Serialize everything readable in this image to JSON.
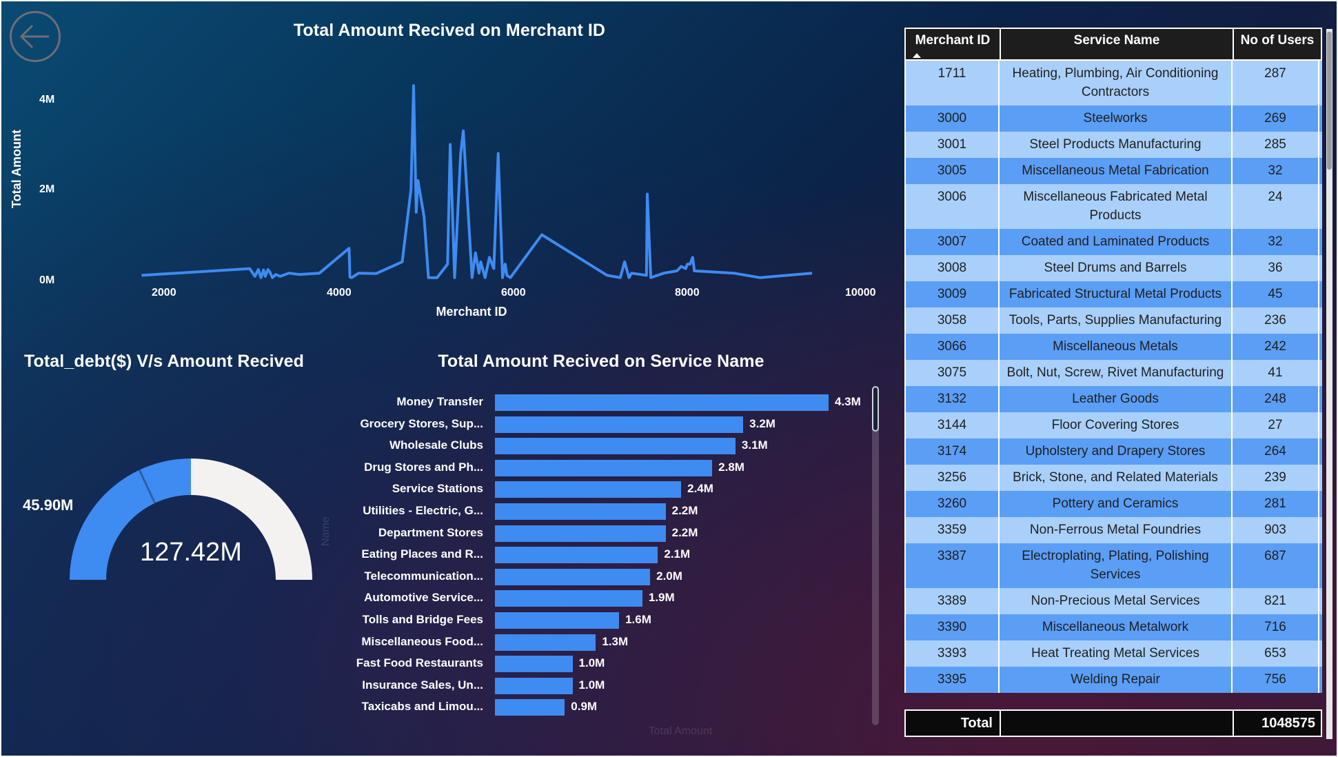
{
  "back_button": {
    "icon": "arrow-left-icon"
  },
  "line_chart": {
    "title": "Total Amount Recived on Merchant ID",
    "xlabel": "Merchant ID",
    "ylabel": "Total Amount",
    "y_ticks": [
      "4M",
      "2M",
      "0M"
    ],
    "x_ticks": [
      "2000",
      "4000",
      "6000",
      "8000",
      "10000"
    ]
  },
  "gauge": {
    "title": "Total_debt($) V/s Amount Recived",
    "value_label": "45.90M",
    "center_label": "127.42M"
  },
  "bar_chart": {
    "title": "Total Amount Recived on Service Name",
    "y_axis_faint": "Name",
    "x_axis_faint": "Total Amount"
  },
  "table": {
    "headers": [
      "Merchant ID",
      "Service Name",
      "No of Users"
    ],
    "rows": [
      [
        "1711",
        "Heating, Plumbing, Air Conditioning Contractors",
        "287"
      ],
      [
        "3000",
        "Steelworks",
        "269"
      ],
      [
        "3001",
        "Steel Products Manufacturing",
        "285"
      ],
      [
        "3005",
        "Miscellaneous Metal Fabrication",
        "32"
      ],
      [
        "3006",
        "Miscellaneous Fabricated Metal Products",
        "24"
      ],
      [
        "3007",
        "Coated and Laminated Products",
        "32"
      ],
      [
        "3008",
        "Steel Drums and Barrels",
        "36"
      ],
      [
        "3009",
        "Fabricated Structural Metal Products",
        "45"
      ],
      [
        "3058",
        "Tools, Parts, Supplies Manufacturing",
        "236"
      ],
      [
        "3066",
        "Miscellaneous Metals",
        "242"
      ],
      [
        "3075",
        "Bolt, Nut, Screw, Rivet Manufacturing",
        "41"
      ],
      [
        "3132",
        "Leather Goods",
        "248"
      ],
      [
        "3144",
        "Floor Covering Stores",
        "27"
      ],
      [
        "3174",
        "Upholstery and Drapery Stores",
        "264"
      ],
      [
        "3256",
        "Brick, Stone, and Related Materials",
        "239"
      ],
      [
        "3260",
        "Pottery and Ceramics",
        "281"
      ],
      [
        "3359",
        "Non-Ferrous Metal Foundries",
        "903"
      ],
      [
        "3387",
        "Electroplating, Plating, Polishing Services",
        "687"
      ],
      [
        "3389",
        "Non-Precious Metal Services",
        "821"
      ],
      [
        "3390",
        "Miscellaneous Metalwork",
        "716"
      ],
      [
        "3393",
        "Heat Treating Metal Services",
        "653"
      ],
      [
        "3395",
        "Welding Repair",
        "756"
      ]
    ],
    "total_label": "Total",
    "total_value": "1048575"
  },
  "colors": {
    "series": "#3e8bf2",
    "gauge_rest": "#f3f2f1",
    "table_light": "#a9d0fb",
    "table_dark": "#5b9ef6"
  },
  "chart_data": [
    {
      "type": "line",
      "title": "Total Amount Recived on Merchant ID",
      "xlabel": "Merchant ID",
      "ylabel": "Total Amount",
      "xlim": [
        1500,
        10000
      ],
      "ylim": [
        0,
        4500000
      ],
      "x": [
        1711,
        2950,
        3010,
        3050,
        3080,
        3110,
        3130,
        3160,
        3180,
        3210,
        3250,
        3300,
        3400,
        3520,
        3750,
        4090,
        4100,
        4120,
        4200,
        4400,
        4700,
        4800,
        4830,
        4860,
        4880,
        4950,
        5000,
        5100,
        5220,
        5250,
        5300,
        5370,
        5400,
        5500,
        5540,
        5580,
        5600,
        5650,
        5700,
        5750,
        5800,
        5850,
        5880,
        5900,
        5940,
        6300,
        7050,
        7200,
        7250,
        7300,
        7330,
        7500,
        7510,
        7550,
        7700,
        7850,
        7900,
        7950,
        7970,
        8000,
        8030,
        8050,
        8500,
        8800,
        9400
      ],
      "y": [
        100000,
        250000,
        80000,
        230000,
        50000,
        220000,
        80000,
        230000,
        180000,
        50000,
        120000,
        80000,
        150000,
        120000,
        150000,
        700000,
        60000,
        50000,
        150000,
        140000,
        400000,
        2000000,
        4300000,
        1500000,
        2200000,
        1400000,
        50000,
        50000,
        350000,
        3000000,
        50000,
        2800000,
        3300000,
        50000,
        600000,
        150000,
        400000,
        50000,
        500000,
        250000,
        2800000,
        50000,
        350000,
        100000,
        50000,
        1000000,
        100000,
        50000,
        400000,
        50000,
        150000,
        100000,
        1900000,
        50000,
        150000,
        200000,
        300000,
        250000,
        350000,
        350000,
        500000,
        200000,
        150000,
        50000,
        150000
      ]
    },
    {
      "type": "gauge",
      "title": "Total_debt($) V/s Amount Recived",
      "value": 45.9,
      "max": 127.42,
      "unit": "M",
      "labels": [
        "45.90M",
        "127.42M"
      ]
    },
    {
      "type": "bar",
      "orientation": "horizontal",
      "title": "Total Amount Recived on Service Name",
      "categories": [
        "Money Transfer",
        "Grocery Stores, Sup...",
        "Wholesale Clubs",
        "Drug Stores and Ph...",
        "Service Stations",
        "Utilities - Electric, G...",
        "Department Stores",
        "Eating Places and R...",
        "Telecommunication...",
        "Automotive Service...",
        "Tolls and Bridge Fees",
        "Miscellaneous Food...",
        "Fast Food Restaurants",
        "Insurance Sales, Un...",
        "Taxicabs and Limou..."
      ],
      "values": [
        4.3,
        3.2,
        3.1,
        2.8,
        2.4,
        2.2,
        2.2,
        2.1,
        2.0,
        1.9,
        1.6,
        1.3,
        1.0,
        1.0,
        0.9
      ],
      "data_labels": [
        "4.3M",
        "3.2M",
        "3.1M",
        "2.8M",
        "2.4M",
        "2.2M",
        "2.2M",
        "2.1M",
        "2.0M",
        "1.9M",
        "1.6M",
        "1.3M",
        "1.0M",
        "1.0M",
        "0.9M"
      ],
      "unit": "M",
      "xlim": [
        0,
        4.3
      ]
    }
  ]
}
